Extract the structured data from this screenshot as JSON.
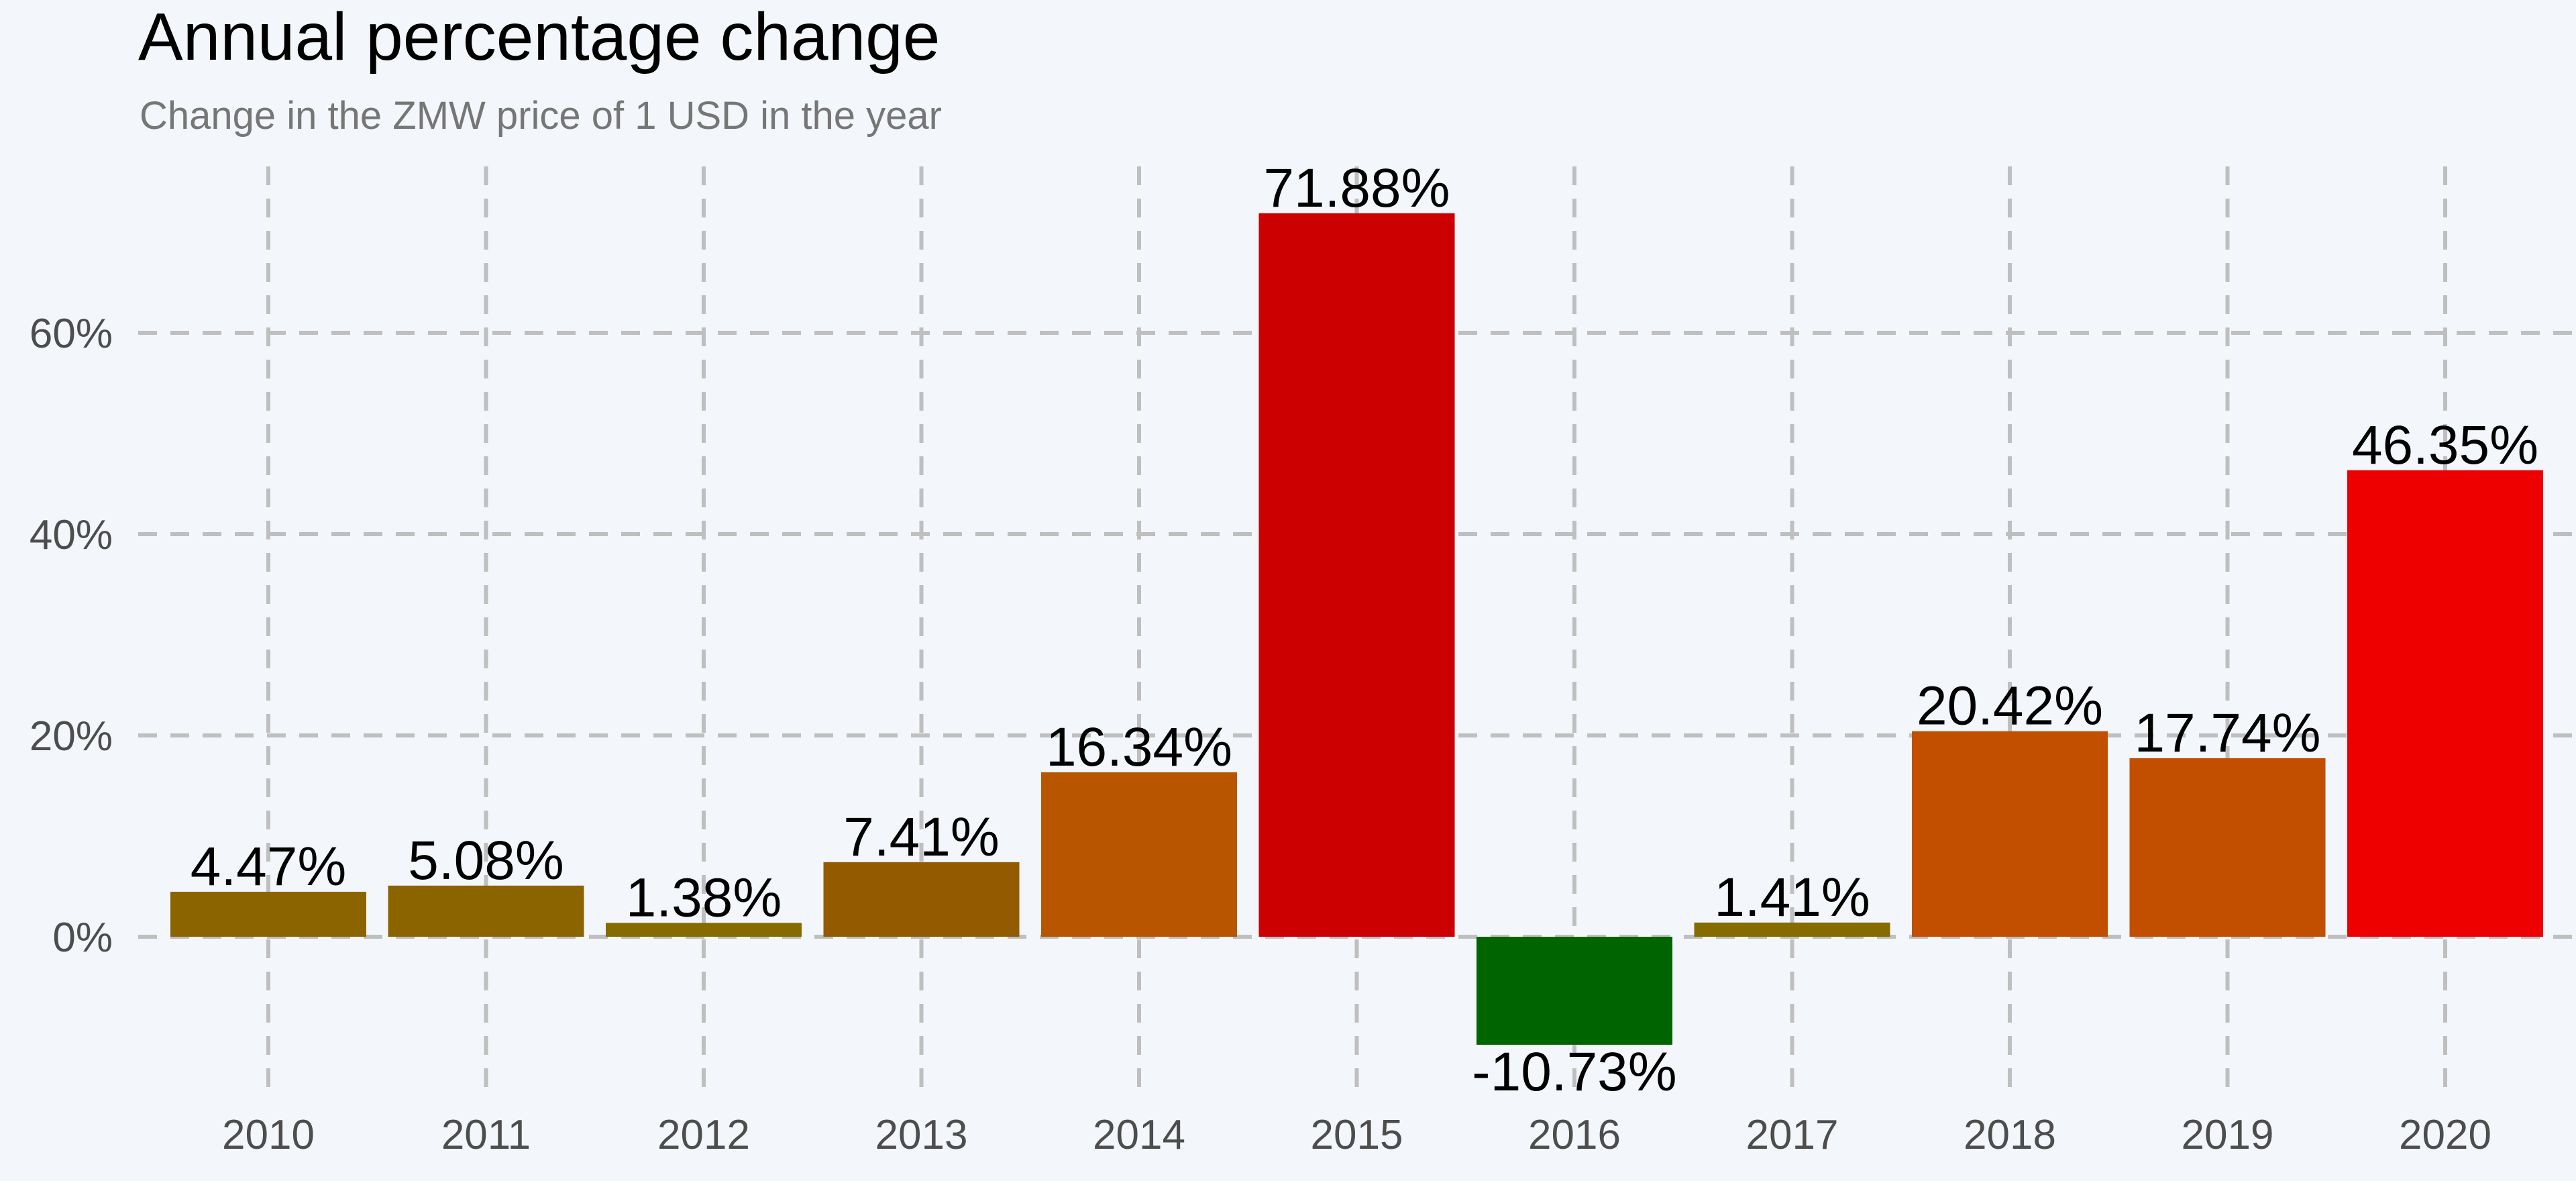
{
  "chart_data": {
    "type": "bar",
    "title": "Annual percentage change",
    "subtitle": "Change in the ZMW price of 1 USD in the year",
    "xlabel": "",
    "ylabel": "",
    "categories": [
      "2010",
      "2011",
      "2012",
      "2013",
      "2014",
      "2015",
      "2016",
      "2017",
      "2018",
      "2019",
      "2020"
    ],
    "values": [
      4.47,
      5.08,
      1.38,
      7.41,
      16.34,
      71.88,
      -10.73,
      1.41,
      20.42,
      17.74,
      46.35
    ],
    "data_labels": [
      "4.47%",
      "5.08%",
      "1.38%",
      "7.41%",
      "16.34%",
      "71.88%",
      "-10.73%",
      "1.41%",
      "20.42%",
      "17.74%",
      "46.35%"
    ],
    "bar_colors": [
      "#8b6400",
      "#8b6400",
      "#856b00",
      "#945a00",
      "#b85500",
      "#cc0000",
      "#006400",
      "#856b00",
      "#c24e00",
      "#c24e00",
      "#ee0000"
    ],
    "y_ticks": [
      0,
      20,
      40,
      60
    ],
    "y_tick_labels": [
      "0%",
      "20%",
      "40%",
      "60%"
    ],
    "ylim": [
      -15,
      80
    ],
    "grid": true,
    "grid_style": "dashed",
    "legend": "none",
    "background_color": "#f3f6fa",
    "grid_color": "#bfbfbf"
  }
}
